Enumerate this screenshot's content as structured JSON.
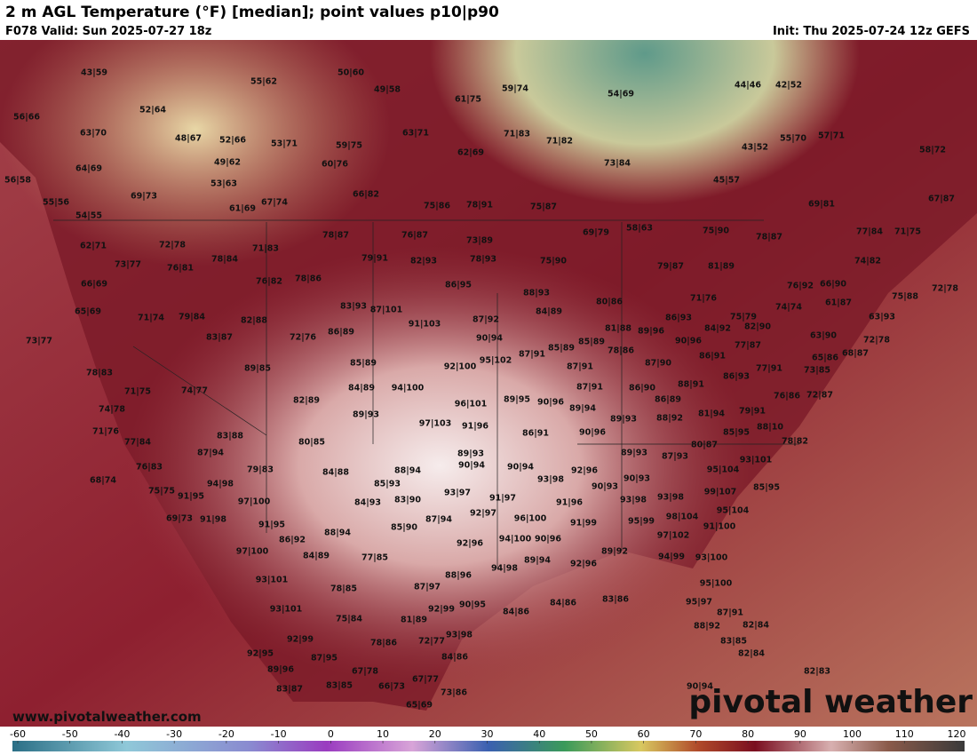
{
  "header": {
    "title": "2 m AGL Temperature (°F) [median]; point values p10|p90",
    "valid": "F078 Valid: Sun 2025-07-27 18z",
    "init": "Init: Thu 2025-07-24 12z GEFS"
  },
  "map": {
    "point_values": [
      "43|59",
      "50|60",
      "55|62",
      "49|58",
      "59|74",
      "54|69",
      "52|64",
      "56|66",
      "61|75",
      "44|46",
      "42|52",
      "63|70",
      "48|67",
      "52|66",
      "53|71",
      "59|75",
      "63|71",
      "71|83",
      "71|82",
      "55|70",
      "57|71",
      "43|52",
      "58|72",
      "62|69",
      "49|62",
      "60|76",
      "73|84",
      "64|69",
      "53|63",
      "45|57",
      "56|58",
      "69|73",
      "66|82",
      "55|56",
      "61|69",
      "67|74",
      "75|86",
      "78|91",
      "75|87",
      "69|81",
      "67|87",
      "54|55",
      "78|87",
      "76|87",
      "73|89",
      "69|79",
      "58|63",
      "75|90",
      "78|87",
      "77|84",
      "71|75",
      "62|71",
      "72|78",
      "71|83",
      "78|84",
      "79|91",
      "82|93",
      "78|93",
      "75|90",
      "79|87",
      "81|89",
      "74|82",
      "73|77",
      "76|81",
      "76|82",
      "78|86",
      "86|95",
      "66|69",
      "88|93",
      "80|86",
      "76|92",
      "66|90",
      "72|78",
      "75|88",
      "71|76",
      "61|87",
      "83|93",
      "87|101",
      "84|89",
      "74|74",
      "65|69",
      "71|74",
      "79|84",
      "82|88",
      "87|92",
      "86|93",
      "75|79",
      "63|93",
      "91|103",
      "81|88",
      "89|96",
      "84|92",
      "82|90",
      "72|76",
      "86|89",
      "83|87",
      "90|94",
      "85|89",
      "85|89",
      "90|96",
      "77|87",
      "63|90",
      "72|78",
      "73|77",
      "87|91",
      "78|86",
      "68|87",
      "86|91",
      "65|86",
      "85|89",
      "95|102",
      "92|100",
      "87|91",
      "87|90",
      "77|91",
      "78|83",
      "89|85",
      "88|91",
      "86|93",
      "71|75",
      "74|77",
      "84|89",
      "94|100",
      "87|91",
      "86|90",
      "76|86",
      "72|87",
      "73|85",
      "82|89",
      "89|95",
      "90|96",
      "86|89",
      "96|101",
      "74|78",
      "89|94",
      "79|91",
      "81|94",
      "89|93",
      "89|93",
      "88|92",
      "97|103",
      "91|96",
      "88|10",
      "71|76",
      "83|88",
      "86|91",
      "90|96",
      "85|95",
      "78|82",
      "77|84",
      "80|85",
      "80|87",
      "87|94",
      "89|93",
      "89|93",
      "87|93",
      "93|101",
      "76|83",
      "79|83",
      "84|88",
      "90|94",
      "90|94",
      "88|94",
      "92|96",
      "95|104",
      "68|74",
      "94|98",
      "85|93",
      "93|98",
      "90|93",
      "90|93",
      "85|95",
      "93|97",
      "91|97",
      "93|98",
      "99|107",
      "75|75",
      "91|95",
      "97|100",
      "84|93",
      "83|90",
      "91|96",
      "93|98",
      "95|104",
      "92|97",
      "69|73",
      "91|98",
      "87|94",
      "96|100",
      "98|104",
      "91|99",
      "95|99",
      "91|100",
      "85|90",
      "91|95",
      "88|94",
      "86|92",
      "94|100",
      "90|96",
      "92|96",
      "97|102",
      "97|100",
      "84|89",
      "77|85",
      "89|94",
      "89|92",
      "94|99",
      "93|100",
      "94|98",
      "92|96",
      "88|96",
      "93|101",
      "95|100",
      "78|85",
      "87|97",
      "93|101",
      "90|95",
      "92|99",
      "84|86",
      "84|86",
      "83|86",
      "95|97",
      "87|91",
      "75|84",
      "81|89",
      "88|92",
      "82|84",
      "93|98",
      "72|77",
      "78|86",
      "92|99",
      "83|85",
      "92|95",
      "87|95",
      "84|86",
      "82|84",
      "89|96",
      "67|78",
      "82|83",
      "67|77",
      "83|87",
      "83|85",
      "66|73",
      "73|86",
      "90|94",
      "65|69"
    ]
  },
  "watermark": {
    "url": "www.pivotalweather.com",
    "logo": "pivotal weather"
  },
  "colorbar": {
    "ticks": [
      -60,
      -50,
      -40,
      -30,
      -20,
      -10,
      0,
      10,
      20,
      30,
      40,
      50,
      60,
      70,
      80,
      90,
      100,
      110,
      120
    ]
  }
}
